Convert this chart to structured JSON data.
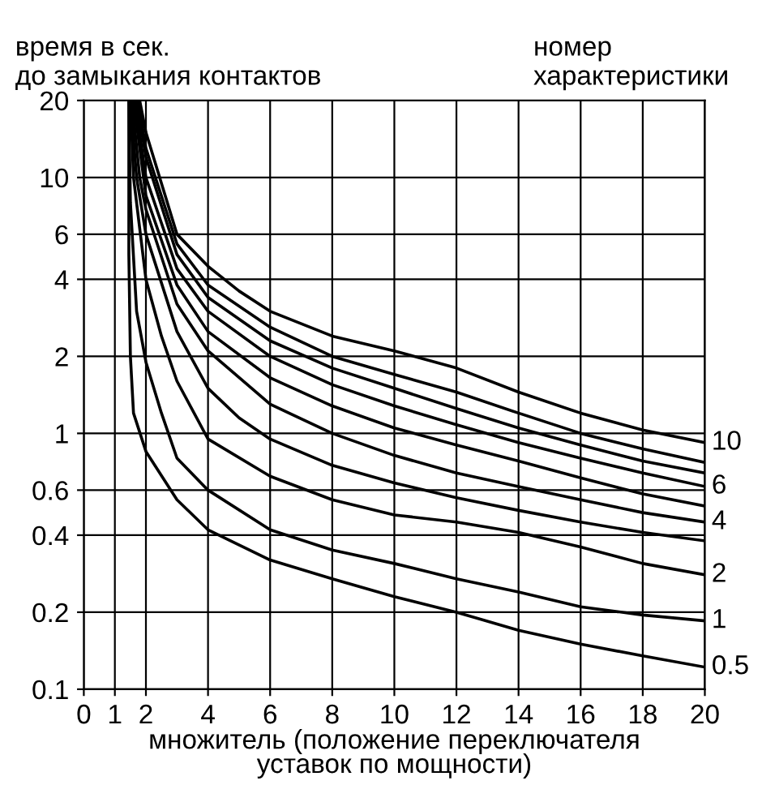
{
  "chart_data": {
    "type": "line",
    "ylabel": "время в сек.\nдо замыкания контактов",
    "xlabel": "множитель (положение переключателя\nуставок по мощности)",
    "legend_title": "номер\nхарактеристики",
    "log": "y",
    "xlim": [
      0,
      20
    ],
    "xticks": [
      0,
      1,
      2,
      4,
      6,
      8,
      10,
      12,
      14,
      16,
      18,
      20
    ],
    "ylim": [
      0.1,
      20
    ],
    "yticks": [
      0.1,
      0.2,
      0.4,
      0.6,
      1,
      2,
      4,
      6,
      10,
      20
    ],
    "grid": true,
    "legend": false,
    "line_style": "solid",
    "series": [
      {
        "name": "10",
        "color": "#000000",
        "x": [
          1.8,
          2,
          3,
          4,
          5,
          6,
          8,
          10,
          12,
          14,
          16,
          18,
          20
        ],
        "values": [
          20,
          15,
          6,
          4.5,
          3.6,
          3.0,
          2.4,
          2.1,
          1.8,
          1.45,
          1.2,
          1.03,
          0.92
        ]
      },
      {
        "color": "#000000",
        "x": [
          1.75,
          2,
          3,
          4,
          6,
          8,
          10,
          12,
          14,
          16,
          18,
          20
        ],
        "values": [
          20,
          13,
          5.5,
          3.8,
          2.6,
          2.0,
          1.7,
          1.45,
          1.2,
          1.0,
          0.87,
          0.77
        ]
      },
      {
        "color": "#000000",
        "x": [
          1.7,
          2,
          3,
          4,
          6,
          8,
          10,
          12,
          14,
          16,
          18,
          20
        ],
        "values": [
          20,
          12,
          5,
          3.4,
          2.3,
          1.8,
          1.5,
          1.25,
          1.05,
          0.9,
          0.78,
          0.7
        ]
      },
      {
        "name": "6",
        "color": "#000000",
        "x": [
          1.65,
          2,
          3,
          4,
          6,
          8,
          10,
          12,
          14,
          16,
          18,
          20
        ],
        "values": [
          20,
          10,
          4.4,
          3.0,
          2.0,
          1.55,
          1.28,
          1.08,
          0.92,
          0.8,
          0.7,
          0.62
        ]
      },
      {
        "color": "#000000",
        "x": [
          1.6,
          2,
          3,
          4,
          6,
          8,
          10,
          12,
          14,
          16,
          18,
          20
        ],
        "values": [
          20,
          8.5,
          3.8,
          2.5,
          1.65,
          1.28,
          1.05,
          0.9,
          0.78,
          0.67,
          0.58,
          0.52
        ]
      },
      {
        "name": "4",
        "color": "#000000",
        "x": [
          1.55,
          1.8,
          2,
          3,
          4,
          6,
          8,
          10,
          12,
          14,
          16,
          18,
          20
        ],
        "values": [
          20,
          10,
          7.5,
          3.2,
          2.1,
          1.3,
          1.0,
          0.82,
          0.7,
          0.62,
          0.55,
          0.49,
          0.45
        ]
      },
      {
        "color": "#000000",
        "x": [
          1.5,
          1.7,
          2,
          3,
          4,
          5,
          6,
          8,
          10,
          12,
          14,
          16,
          18,
          20
        ],
        "values": [
          20,
          10,
          6,
          2.5,
          1.5,
          1.15,
          0.95,
          0.75,
          0.64,
          0.56,
          0.5,
          0.45,
          0.41,
          0.38
        ]
      },
      {
        "name": "2",
        "color": "#000000",
        "x": [
          1.5,
          1.6,
          2,
          2.5,
          3,
          4,
          6,
          8,
          10,
          12,
          14,
          16,
          18,
          20
        ],
        "values": [
          20,
          10,
          4,
          2.4,
          1.6,
          0.95,
          0.68,
          0.55,
          0.48,
          0.45,
          0.41,
          0.36,
          0.31,
          0.28
        ]
      },
      {
        "name": "1",
        "color": "#000000",
        "x": [
          1.45,
          1.5,
          1.7,
          2,
          2.5,
          3,
          4,
          6,
          8,
          10,
          12,
          14,
          16,
          18,
          20
        ],
        "values": [
          20,
          8,
          3,
          1.9,
          1.2,
          0.8,
          0.6,
          0.42,
          0.35,
          0.31,
          0.27,
          0.24,
          0.21,
          0.195,
          0.185
        ]
      },
      {
        "name": "0.5",
        "color": "#000000",
        "x": [
          1.45,
          1.45,
          1.5,
          1.6,
          2,
          3,
          4,
          6,
          8,
          10,
          12,
          14,
          16,
          18,
          20
        ],
        "values": [
          20,
          5,
          2,
          1.2,
          0.85,
          0.55,
          0.42,
          0.32,
          0.27,
          0.23,
          0.2,
          0.17,
          0.15,
          0.135,
          0.122
        ]
      }
    ]
  }
}
